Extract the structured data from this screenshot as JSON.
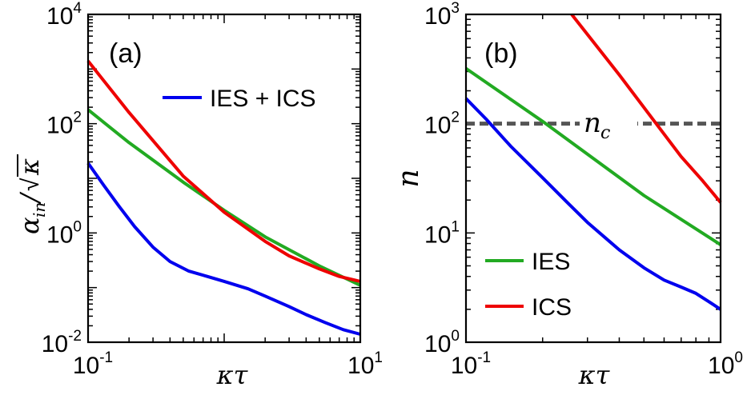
{
  "chart_data": [
    {
      "panel": "(a)",
      "type": "line",
      "xscale": "log",
      "yscale": "log",
      "xlim": [
        0.1,
        10
      ],
      "ylim": [
        0.01,
        10000
      ],
      "xlabel": "κτ",
      "ylabel": "α_in/√κ",
      "xticks": [
        {
          "v": 0.1,
          "base": "10",
          "exp": "-1"
        },
        {
          "v": 10,
          "base": "10",
          "exp": "1"
        }
      ],
      "yticks": [
        {
          "v": 10000,
          "base": "10",
          "exp": "4"
        },
        {
          "v": 100,
          "base": "10",
          "exp": "2"
        },
        {
          "v": 1,
          "base": "10",
          "exp": "0"
        },
        {
          "v": 0.01,
          "base": "10",
          "exp": "-2"
        }
      ],
      "legend": {
        "location": "upper right",
        "entries": [
          "IES + ICS"
        ]
      },
      "series": [
        {
          "name": "IES + ICS",
          "color": "#0000ee",
          "x": [
            0.1,
            0.13,
            0.17,
            0.22,
            0.3,
            0.4,
            0.55,
            0.75,
            1.0,
            1.5,
            2.0,
            3.0,
            4.0,
            5.5,
            7.5,
            10
          ],
          "y": [
            19,
            7.5,
            3.0,
            1.3,
            0.55,
            0.3,
            0.2,
            0.16,
            0.13,
            0.095,
            0.07,
            0.045,
            0.032,
            0.023,
            0.017,
            0.014
          ]
        },
        {
          "name": "",
          "color": "#22aa22",
          "x": [
            0.1,
            0.2,
            0.5,
            1.0,
            2.0,
            5.0,
            10
          ],
          "y": [
            180,
            45,
            8.5,
            2.6,
            0.85,
            0.25,
            0.11
          ]
        },
        {
          "name": "",
          "color": "#ee0000",
          "x": [
            0.1,
            0.2,
            0.5,
            1.0,
            2.0,
            3.0,
            5.0,
            7.0,
            10
          ],
          "y": [
            1400,
            160,
            11,
            2.4,
            0.7,
            0.38,
            0.22,
            0.16,
            0.13
          ]
        }
      ]
    },
    {
      "panel": "(b)",
      "type": "line",
      "xscale": "log",
      "yscale": "log",
      "xlim": [
        0.1,
        1
      ],
      "ylim": [
        1,
        1000
      ],
      "xlabel": "κτ",
      "ylabel": "n",
      "xticks": [
        {
          "v": 0.1,
          "base": "10",
          "exp": "-1"
        },
        {
          "v": 1,
          "base": "10",
          "exp": "0"
        }
      ],
      "yticks": [
        {
          "v": 1000,
          "base": "10",
          "exp": "3"
        },
        {
          "v": 100,
          "base": "10",
          "exp": "2"
        },
        {
          "v": 10,
          "base": "10",
          "exp": "1"
        },
        {
          "v": 1,
          "base": "10",
          "exp": "0"
        }
      ],
      "annotation": "n_c",
      "legend": {
        "location": "lower left",
        "entries": [
          "IES",
          "ICS"
        ]
      },
      "threshold": {
        "label": "n_c",
        "y": 100,
        "color": "#555555",
        "style": "dashed"
      },
      "series": [
        {
          "name": "",
          "color": "#0000ee",
          "x": [
            0.1,
            0.12,
            0.15,
            0.2,
            0.25,
            0.3,
            0.4,
            0.5,
            0.6,
            0.7,
            0.8,
            0.9,
            1.0
          ],
          "y": [
            170,
            110,
            62,
            32,
            19,
            12.5,
            7.0,
            4.8,
            3.7,
            3.2,
            2.8,
            2.35,
            2.0
          ]
        },
        {
          "name": "IES",
          "color": "#22aa22",
          "x": [
            0.1,
            0.2,
            0.5,
            1.0
          ],
          "y": [
            320,
            105,
            22,
            7.8
          ]
        },
        {
          "name": "ICS",
          "color": "#ee0000",
          "x": [
            0.26,
            0.4,
            0.55,
            0.7,
            0.85,
            1.0
          ],
          "y": [
            1000,
            280,
            105,
            50,
            30,
            19
          ]
        }
      ]
    }
  ]
}
